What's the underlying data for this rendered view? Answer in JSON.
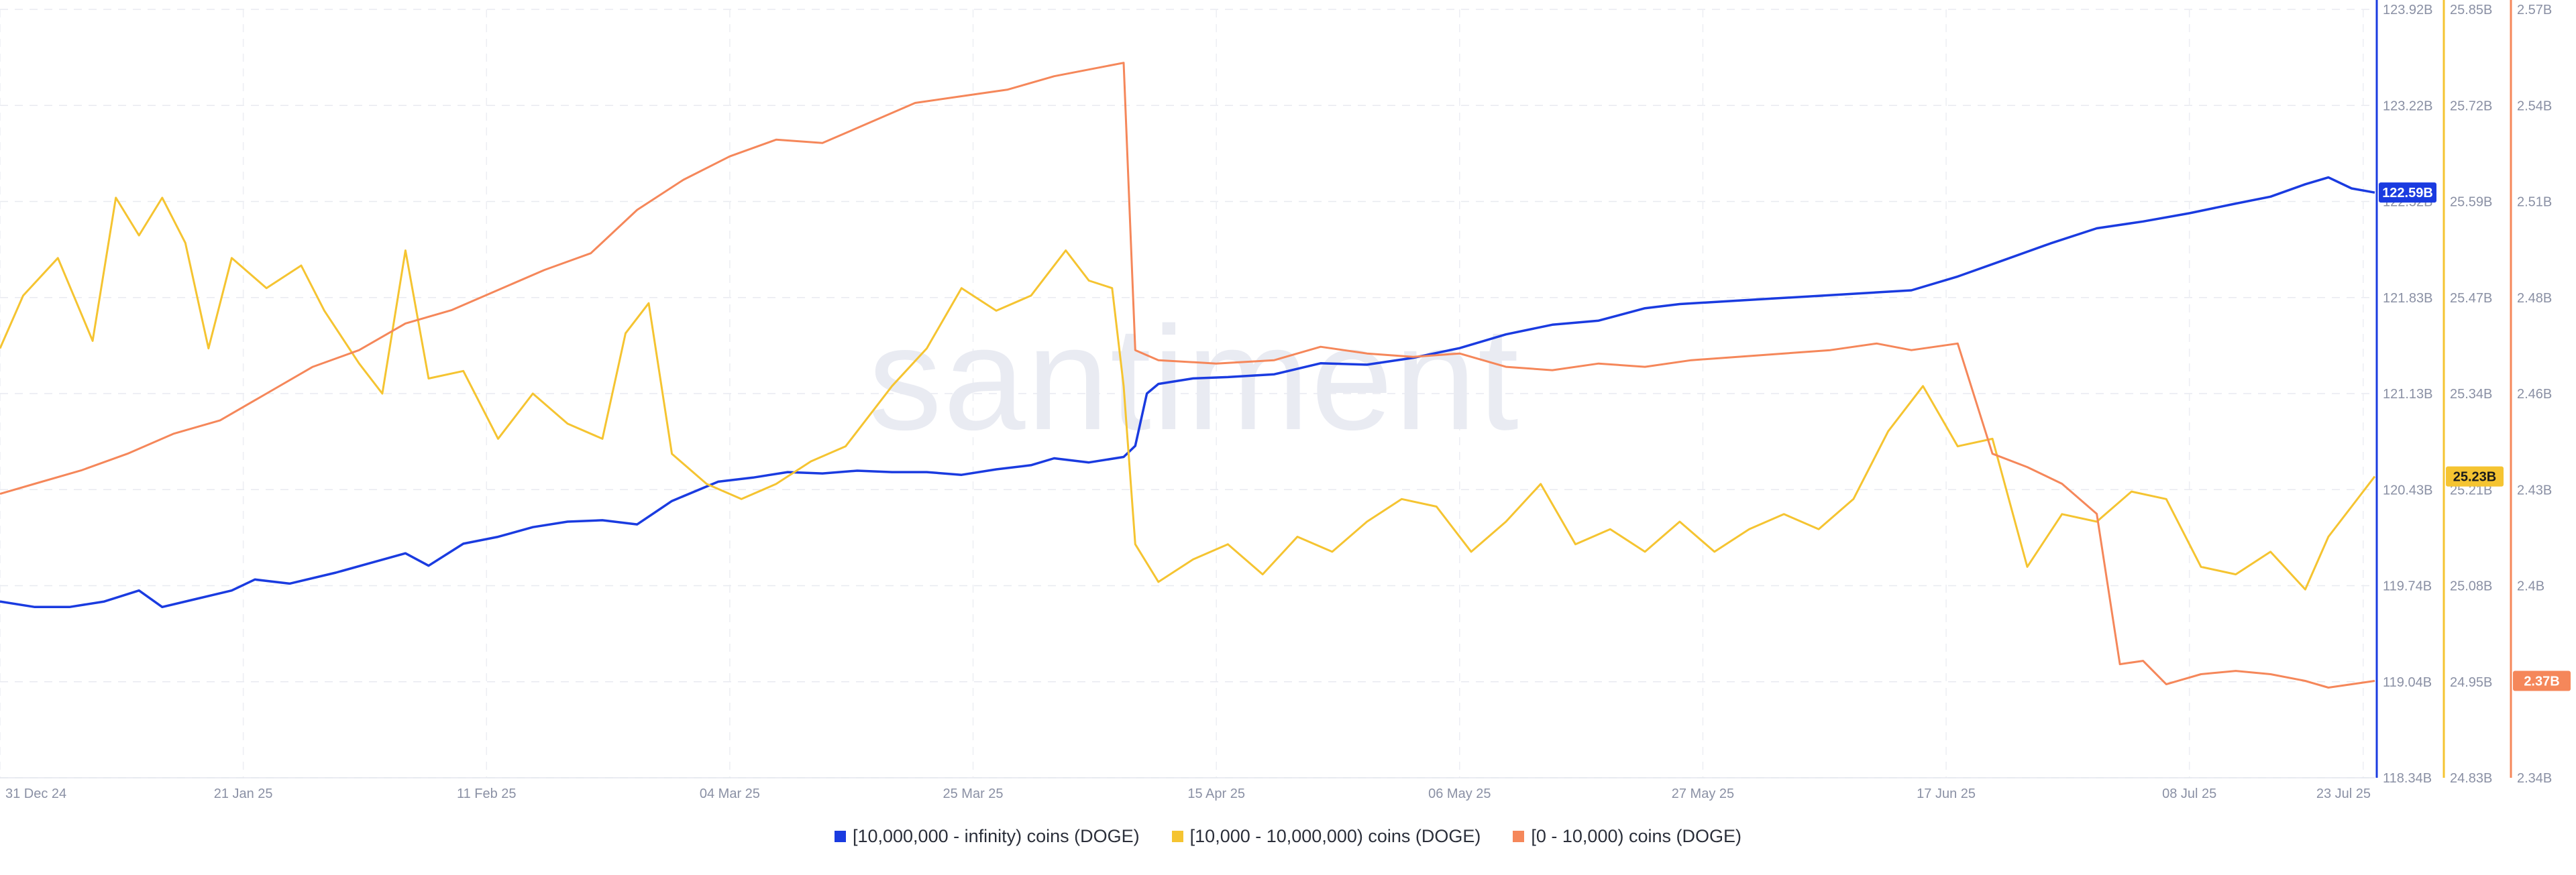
{
  "chart_data": {
    "type": "line",
    "watermark": "santiment",
    "x_ticks": [
      "31 Dec 24",
      "21 Jan 25",
      "11 Feb 25",
      "04 Mar 25",
      "25 Mar 25",
      "15 Apr 25",
      "06 May 25",
      "27 May 25",
      "17 Jun 25",
      "08 Jul 25",
      "23 Jul 25"
    ],
    "x_start": "2024-12-31",
    "x_end": "2025-07-24",
    "grid": true,
    "legend_position": "bottom-center",
    "axes": [
      {
        "id": "blue",
        "ticks": [
          "123.92B",
          "123.22B",
          "122.52B",
          "121.83B",
          "121.13B",
          "120.43B",
          "119.74B",
          "119.04B",
          "118.34B"
        ],
        "range": [
          118.34,
          123.92
        ],
        "unit": "B"
      },
      {
        "id": "yellow",
        "ticks": [
          "25.85B",
          "25.72B",
          "25.59B",
          "25.47B",
          "25.34B",
          "25.21B",
          "25.08B",
          "24.95B",
          "24.83B"
        ],
        "range": [
          24.83,
          25.85
        ],
        "unit": "B"
      },
      {
        "id": "orange",
        "ticks": [
          "2.57B",
          "2.54B",
          "2.51B",
          "2.48B",
          "2.46B",
          "2.43B",
          "2.4B",
          "2.37B",
          "2.34B"
        ],
        "range": [
          2.34,
          2.57
        ],
        "unit": "B"
      }
    ],
    "series": [
      {
        "name": "[10,000,000 - infinity) coins (DOGE)",
        "color": "#1a3be0",
        "axis": "blue",
        "last_label": "122.59B",
        "points": [
          [
            "2024-12-31",
            119.62
          ],
          [
            "2025-01-03",
            119.58
          ],
          [
            "2025-01-06",
            119.58
          ],
          [
            "2025-01-09",
            119.62
          ],
          [
            "2025-01-12",
            119.7
          ],
          [
            "2025-01-14",
            119.58
          ],
          [
            "2025-01-17",
            119.64
          ],
          [
            "2025-01-20",
            119.7
          ],
          [
            "2025-01-22",
            119.78
          ],
          [
            "2025-01-25",
            119.75
          ],
          [
            "2025-01-29",
            119.83
          ],
          [
            "2025-02-01",
            119.9
          ],
          [
            "2025-02-04",
            119.97
          ],
          [
            "2025-02-06",
            119.88
          ],
          [
            "2025-02-09",
            120.04
          ],
          [
            "2025-02-12",
            120.09
          ],
          [
            "2025-02-15",
            120.16
          ],
          [
            "2025-02-18",
            120.2
          ],
          [
            "2025-02-21",
            120.21
          ],
          [
            "2025-02-24",
            120.18
          ],
          [
            "2025-02-27",
            120.35
          ],
          [
            "2025-03-03",
            120.49
          ],
          [
            "2025-03-06",
            120.52
          ],
          [
            "2025-03-09",
            120.56
          ],
          [
            "2025-03-12",
            120.55
          ],
          [
            "2025-03-15",
            120.57
          ],
          [
            "2025-03-18",
            120.56
          ],
          [
            "2025-03-21",
            120.56
          ],
          [
            "2025-03-24",
            120.54
          ],
          [
            "2025-03-27",
            120.58
          ],
          [
            "2025-03-30",
            120.61
          ],
          [
            "2025-04-01",
            120.66
          ],
          [
            "2025-04-04",
            120.63
          ],
          [
            "2025-04-07",
            120.67
          ],
          [
            "2025-04-08",
            120.75
          ],
          [
            "2025-04-09",
            121.13
          ],
          [
            "2025-04-10",
            121.2
          ],
          [
            "2025-04-13",
            121.24
          ],
          [
            "2025-04-16",
            121.25
          ],
          [
            "2025-04-20",
            121.27
          ],
          [
            "2025-04-24",
            121.35
          ],
          [
            "2025-04-28",
            121.34
          ],
          [
            "2025-05-02",
            121.39
          ],
          [
            "2025-05-06",
            121.46
          ],
          [
            "2025-05-10",
            121.56
          ],
          [
            "2025-05-14",
            121.63
          ],
          [
            "2025-05-18",
            121.66
          ],
          [
            "2025-05-22",
            121.75
          ],
          [
            "2025-05-25",
            121.78
          ],
          [
            "2025-05-29",
            121.8
          ],
          [
            "2025-06-02",
            121.82
          ],
          [
            "2025-06-06",
            121.84
          ],
          [
            "2025-06-10",
            121.86
          ],
          [
            "2025-06-14",
            121.88
          ],
          [
            "2025-06-18",
            121.98
          ],
          [
            "2025-06-22",
            122.1
          ],
          [
            "2025-06-26",
            122.22
          ],
          [
            "2025-06-30",
            122.33
          ],
          [
            "2025-07-04",
            122.38
          ],
          [
            "2025-07-08",
            122.44
          ],
          [
            "2025-07-12",
            122.51
          ],
          [
            "2025-07-15",
            122.56
          ],
          [
            "2025-07-18",
            122.65
          ],
          [
            "2025-07-20",
            122.7
          ],
          [
            "2025-07-22",
            122.62
          ],
          [
            "2025-07-24",
            122.59
          ]
        ]
      },
      {
        "name": "[10,000 - 10,000,000) coins (DOGE)",
        "color": "#f5c431",
        "axis": "yellow",
        "last_label": "25.23B",
        "points": [
          [
            "2024-12-31",
            25.4
          ],
          [
            "2025-01-02",
            25.47
          ],
          [
            "2025-01-05",
            25.52
          ],
          [
            "2025-01-08",
            25.41
          ],
          [
            "2025-01-10",
            25.6
          ],
          [
            "2025-01-12",
            25.55
          ],
          [
            "2025-01-14",
            25.6
          ],
          [
            "2025-01-16",
            25.54
          ],
          [
            "2025-01-18",
            25.4
          ],
          [
            "2025-01-20",
            25.52
          ],
          [
            "2025-01-23",
            25.48
          ],
          [
            "2025-01-26",
            25.51
          ],
          [
            "2025-01-28",
            25.45
          ],
          [
            "2025-01-31",
            25.38
          ],
          [
            "2025-02-02",
            25.34
          ],
          [
            "2025-02-04",
            25.53
          ],
          [
            "2025-02-06",
            25.36
          ],
          [
            "2025-02-09",
            25.37
          ],
          [
            "2025-02-12",
            25.28
          ],
          [
            "2025-02-15",
            25.34
          ],
          [
            "2025-02-18",
            25.3
          ],
          [
            "2025-02-21",
            25.28
          ],
          [
            "2025-02-23",
            25.42
          ],
          [
            "2025-02-25",
            25.46
          ],
          [
            "2025-02-27",
            25.26
          ],
          [
            "2025-03-02",
            25.22
          ],
          [
            "2025-03-05",
            25.2
          ],
          [
            "2025-03-08",
            25.22
          ],
          [
            "2025-03-11",
            25.25
          ],
          [
            "2025-03-14",
            25.27
          ],
          [
            "2025-03-18",
            25.35
          ],
          [
            "2025-03-21",
            25.4
          ],
          [
            "2025-03-24",
            25.48
          ],
          [
            "2025-03-27",
            25.45
          ],
          [
            "2025-03-30",
            25.47
          ],
          [
            "2025-04-02",
            25.53
          ],
          [
            "2025-04-04",
            25.49
          ],
          [
            "2025-04-06",
            25.48
          ],
          [
            "2025-04-07",
            25.35
          ],
          [
            "2025-04-08",
            25.14
          ],
          [
            "2025-04-10",
            25.09
          ],
          [
            "2025-04-13",
            25.12
          ],
          [
            "2025-04-16",
            25.14
          ],
          [
            "2025-04-19",
            25.1
          ],
          [
            "2025-04-22",
            25.15
          ],
          [
            "2025-04-25",
            25.13
          ],
          [
            "2025-04-28",
            25.17
          ],
          [
            "2025-05-01",
            25.2
          ],
          [
            "2025-05-04",
            25.19
          ],
          [
            "2025-05-07",
            25.13
          ],
          [
            "2025-05-10",
            25.17
          ],
          [
            "2025-05-13",
            25.22
          ],
          [
            "2025-05-16",
            25.14
          ],
          [
            "2025-05-19",
            25.16
          ],
          [
            "2025-05-22",
            25.13
          ],
          [
            "2025-05-25",
            25.17
          ],
          [
            "2025-05-28",
            25.13
          ],
          [
            "2025-05-31",
            25.16
          ],
          [
            "2025-06-03",
            25.18
          ],
          [
            "2025-06-06",
            25.16
          ],
          [
            "2025-06-09",
            25.2
          ],
          [
            "2025-06-12",
            25.29
          ],
          [
            "2025-06-15",
            25.35
          ],
          [
            "2025-06-18",
            25.27
          ],
          [
            "2025-06-21",
            25.28
          ],
          [
            "2025-06-24",
            25.11
          ],
          [
            "2025-06-27",
            25.18
          ],
          [
            "2025-06-30",
            25.17
          ],
          [
            "2025-07-03",
            25.21
          ],
          [
            "2025-07-06",
            25.2
          ],
          [
            "2025-07-09",
            25.11
          ],
          [
            "2025-07-12",
            25.1
          ],
          [
            "2025-07-15",
            25.13
          ],
          [
            "2025-07-18",
            25.08
          ],
          [
            "2025-07-20",
            25.15
          ],
          [
            "2025-07-22",
            25.19
          ],
          [
            "2025-07-24",
            25.23
          ]
        ]
      },
      {
        "name": "[0 - 10,000) coins (DOGE)",
        "color": "#f5875a",
        "axis": "orange",
        "last_label": "2.37B",
        "points": [
          [
            "2024-12-31",
            2.425
          ],
          [
            "2025-01-03",
            2.428
          ],
          [
            "2025-01-07",
            2.432
          ],
          [
            "2025-01-11",
            2.437
          ],
          [
            "2025-01-15",
            2.443
          ],
          [
            "2025-01-19",
            2.447
          ],
          [
            "2025-01-23",
            2.455
          ],
          [
            "2025-01-27",
            2.463
          ],
          [
            "2025-01-31",
            2.468
          ],
          [
            "2025-02-04",
            2.476
          ],
          [
            "2025-02-08",
            2.48
          ],
          [
            "2025-02-12",
            2.486
          ],
          [
            "2025-02-16",
            2.492
          ],
          [
            "2025-02-20",
            2.497
          ],
          [
            "2025-02-24",
            2.51
          ],
          [
            "2025-02-28",
            2.519
          ],
          [
            "2025-03-04",
            2.526
          ],
          [
            "2025-03-08",
            2.531
          ],
          [
            "2025-03-12",
            2.53
          ],
          [
            "2025-03-16",
            2.536
          ],
          [
            "2025-03-20",
            2.542
          ],
          [
            "2025-03-24",
            2.544
          ],
          [
            "2025-03-28",
            2.546
          ],
          [
            "2025-04-01",
            2.55
          ],
          [
            "2025-04-04",
            2.552
          ],
          [
            "2025-04-07",
            2.554
          ],
          [
            "2025-04-08",
            2.468
          ],
          [
            "2025-04-10",
            2.465
          ],
          [
            "2025-04-15",
            2.464
          ],
          [
            "2025-04-20",
            2.465
          ],
          [
            "2025-04-24",
            2.469
          ],
          [
            "2025-04-28",
            2.467
          ],
          [
            "2025-05-02",
            2.466
          ],
          [
            "2025-05-06",
            2.467
          ],
          [
            "2025-05-10",
            2.463
          ],
          [
            "2025-05-14",
            2.462
          ],
          [
            "2025-05-18",
            2.464
          ],
          [
            "2025-05-22",
            2.463
          ],
          [
            "2025-05-26",
            2.465
          ],
          [
            "2025-05-30",
            2.466
          ],
          [
            "2025-06-03",
            2.467
          ],
          [
            "2025-06-07",
            2.468
          ],
          [
            "2025-06-11",
            2.47
          ],
          [
            "2025-06-14",
            2.468
          ],
          [
            "2025-06-18",
            2.47
          ],
          [
            "2025-06-21",
            2.437
          ],
          [
            "2025-06-24",
            2.433
          ],
          [
            "2025-06-27",
            2.428
          ],
          [
            "2025-06-30",
            2.419
          ],
          [
            "2025-07-02",
            2.374
          ],
          [
            "2025-07-04",
            2.375
          ],
          [
            "2025-07-06",
            2.368
          ],
          [
            "2025-07-09",
            2.371
          ],
          [
            "2025-07-12",
            2.372
          ],
          [
            "2025-07-15",
            2.371
          ],
          [
            "2025-07-18",
            2.369
          ],
          [
            "2025-07-20",
            2.367
          ],
          [
            "2025-07-22",
            2.368
          ],
          [
            "2025-07-24",
            2.369
          ]
        ]
      }
    ]
  }
}
